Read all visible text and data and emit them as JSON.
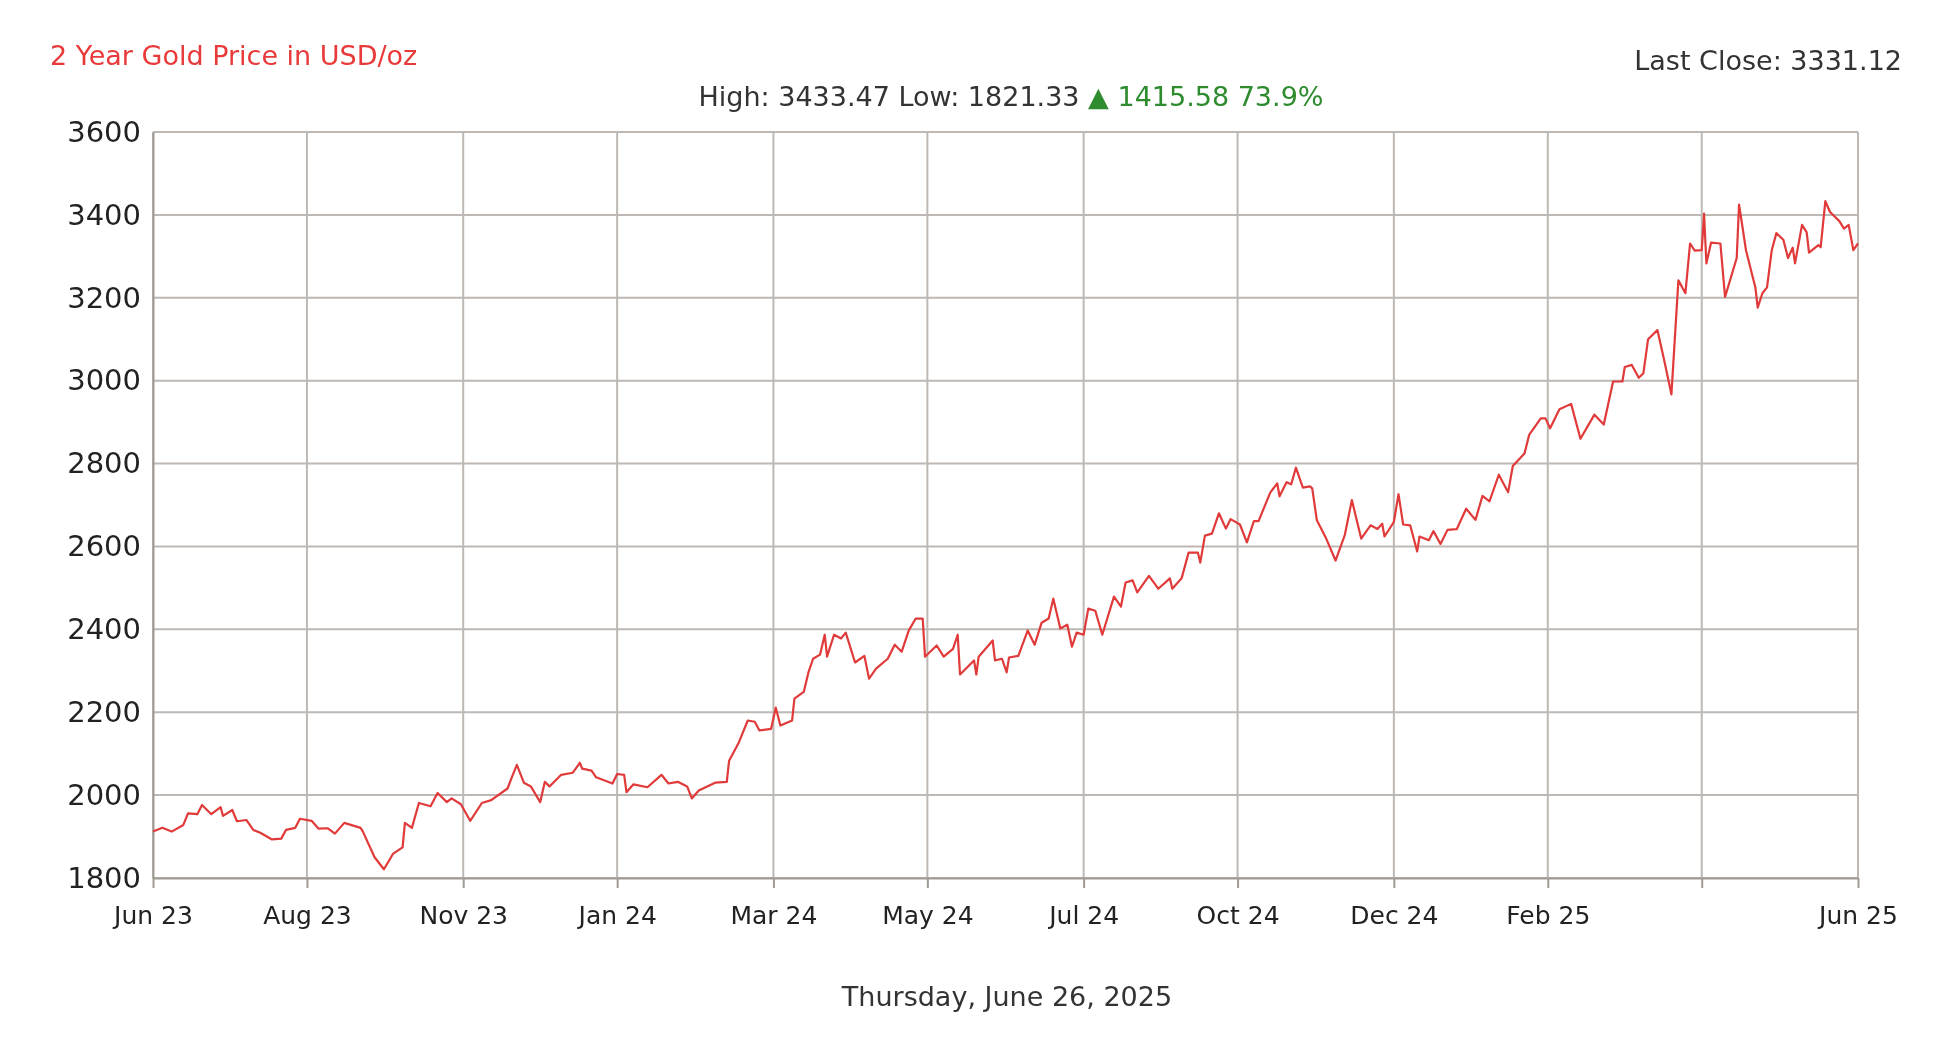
{
  "chart_data": {
    "type": "line",
    "title": "2 Year Gold Price in USD/oz",
    "subtitle": "High: 3433.47 Low: 1821.33",
    "annotations": [
      "▲ 1415.58 73.9%",
      "Last Close: 3331.12",
      "Thursday, June 26, 2025"
    ],
    "xlim": [
      "2023-06-26",
      "2025-06-26"
    ],
    "xticks": [
      {
        "value": "2023-06-26",
        "label": "Jun 23"
      },
      {
        "value": "2023-08-31",
        "label": "Aug 23"
      },
      {
        "value": "2023-11-06",
        "label": "Nov 23"
      },
      {
        "value": "2024-01-11",
        "label": "Jan 24"
      },
      {
        "value": "2024-03-18",
        "label": "Mar 24"
      },
      {
        "value": "2024-05-23",
        "label": "May 24"
      },
      {
        "value": "2024-07-29",
        "label": "Jul 24"
      },
      {
        "value": "2024-10-03",
        "label": "Oct 24"
      },
      {
        "value": "2024-12-09",
        "label": "Dec 24"
      },
      {
        "value": "2025-02-13",
        "label": "Feb 25"
      },
      {
        "value": "2025-04-20",
        "label": null
      },
      {
        "value": "2025-06-26",
        "label": "Jun 25"
      }
    ],
    "ylim": [
      1800,
      3600
    ],
    "yticks": [
      1800,
      2000,
      2200,
      2400,
      2600,
      2800,
      3000,
      3200,
      3400,
      3600
    ],
    "grid": true,
    "marker": "none",
    "line_style": "solid",
    "x": [
      "2023-06-26",
      "2023-06-30",
      "2023-07-04",
      "2023-07-09",
      "2023-07-11",
      "2023-07-15",
      "2023-07-17",
      "2023-07-21",
      "2023-07-25",
      "2023-07-26",
      "2023-07-30",
      "2023-08-01",
      "2023-08-05",
      "2023-08-08",
      "2023-08-11",
      "2023-08-16",
      "2023-08-20",
      "2023-08-22",
      "2023-08-26",
      "2023-08-28",
      "2023-09-02",
      "2023-09-05",
      "2023-09-09",
      "2023-09-12",
      "2023-09-16",
      "2023-09-23",
      "2023-09-24",
      "2023-09-29",
      "2023-10-03",
      "2023-10-07",
      "2023-10-11",
      "2023-10-12",
      "2023-10-15",
      "2023-10-18",
      "2023-10-23",
      "2023-10-26",
      "2023-10-30",
      "2023-11-01",
      "2023-11-05",
      "2023-11-09",
      "2023-11-14",
      "2023-11-18",
      "2023-11-25",
      "2023-11-27",
      "2023-11-29",
      "2023-12-02",
      "2023-12-05",
      "2023-12-09",
      "2023-12-11",
      "2023-12-13",
      "2023-12-18",
      "2023-12-23",
      "2023-12-26",
      "2023-12-27",
      "2023-12-31",
      "2024-01-02",
      "2024-01-09",
      "2024-01-11",
      "2024-01-14",
      "2024-01-15",
      "2024-01-18",
      "2024-01-24",
      "2024-01-30",
      "2024-02-02",
      "2024-02-06",
      "2024-02-10",
      "2024-02-12",
      "2024-02-15",
      "2024-02-22",
      "2024-02-27",
      "2024-02-28",
      "2024-03-03",
      "2024-03-07",
      "2024-03-10",
      "2024-03-12",
      "2024-03-17",
      "2024-03-19",
      "2024-03-21",
      "2024-03-26",
      "2024-03-27",
      "2024-03-31",
      "2024-04-02",
      "2024-04-04",
      "2024-04-07",
      "2024-04-09",
      "2024-04-10",
      "2024-04-13",
      "2024-04-16",
      "2024-04-18",
      "2024-04-22",
      "2024-04-26",
      "2024-04-28",
      "2024-05-01",
      "2024-05-06",
      "2024-05-09",
      "2024-05-12",
      "2024-05-15",
      "2024-05-18",
      "2024-05-21",
      "2024-05-22",
      "2024-05-27",
      "2024-05-30",
      "2024-06-03",
      "2024-06-05",
      "2024-06-06",
      "2024-06-12",
      "2024-06-13",
      "2024-06-14",
      "2024-06-20",
      "2024-06-21",
      "2024-06-24",
      "2024-06-26",
      "2024-06-27",
      "2024-07-01",
      "2024-07-05",
      "2024-07-08",
      "2024-07-11",
      "2024-07-14",
      "2024-07-16",
      "2024-07-19",
      "2024-07-22",
      "2024-07-24",
      "2024-07-26",
      "2024-07-29",
      "2024-07-31",
      "2024-08-03",
      "2024-08-06",
      "2024-08-11",
      "2024-08-14",
      "2024-08-16",
      "2024-08-19",
      "2024-08-21",
      "2024-08-26",
      "2024-08-30",
      "2024-09-04",
      "2024-09-05",
      "2024-09-09",
      "2024-09-12",
      "2024-09-16",
      "2024-09-17",
      "2024-09-19",
      "2024-09-22",
      "2024-09-25",
      "2024-09-28",
      "2024-09-30",
      "2024-10-04",
      "2024-10-07",
      "2024-10-10",
      "2024-10-12",
      "2024-10-17",
      "2024-10-20",
      "2024-10-21",
      "2024-10-24",
      "2024-10-26",
      "2024-10-28",
      "2024-10-31",
      "2024-11-03",
      "2024-11-04",
      "2024-11-06",
      "2024-11-10",
      "2024-11-14",
      "2024-11-18",
      "2024-11-21",
      "2024-11-25",
      "2024-11-29",
      "2024-12-02",
      "2024-12-04",
      "2024-12-05",
      "2024-12-09",
      "2024-12-11",
      "2024-12-13",
      "2024-12-16",
      "2024-12-19",
      "2024-12-20",
      "2024-12-24",
      "2024-12-26",
      "2024-12-29",
      "2025-01-01",
      "2025-01-05",
      "2025-01-09",
      "2025-01-13",
      "2025-01-16",
      "2025-01-19",
      "2025-01-23",
      "2025-01-27",
      "2025-01-29",
      "2025-02-03",
      "2025-02-05",
      "2025-02-10",
      "2025-02-12",
      "2025-02-14",
      "2025-02-18",
      "2025-02-23",
      "2025-02-27",
      "2025-03-05",
      "2025-03-09",
      "2025-03-13",
      "2025-03-17",
      "2025-03-18",
      "2025-03-21",
      "2025-03-24",
      "2025-03-26",
      "2025-03-28",
      "2025-04-01",
      "2025-04-04",
      "2025-04-07",
      "2025-04-10",
      "2025-04-13",
      "2025-04-15",
      "2025-04-17",
      "2025-04-20",
      "2025-04-21",
      "2025-04-22",
      "2025-04-24",
      "2025-04-28",
      "2025-04-30",
      "2025-05-05",
      "2025-05-06",
      "2025-05-09",
      "2025-05-13",
      "2025-05-14",
      "2025-05-16",
      "2025-05-18",
      "2025-05-20",
      "2025-05-22",
      "2025-05-25",
      "2025-05-27",
      "2025-05-29",
      "2025-05-30",
      "2025-06-02",
      "2025-06-04",
      "2025-06-05",
      "2025-06-09",
      "2025-06-10",
      "2025-06-12",
      "2025-06-14",
      "2025-06-18",
      "2025-06-20",
      "2025-06-22",
      "2025-06-24",
      "2025-06-26"
    ],
    "series": [
      {
        "color": "#e03a3a",
        "values": [
          1912,
          1921,
          1912,
          1928,
          1956,
          1954,
          1976,
          1954,
          1971,
          1950,
          1964,
          1937,
          1940,
          1916,
          1909,
          1893,
          1895,
          1916,
          1921,
          1943,
          1938,
          1919,
          1920,
          1907,
          1933,
          1921,
          1912,
          1850,
          1821,
          1859,
          1874,
          1933,
          1921,
          1981,
          1973,
          2005,
          1983,
          1992,
          1978,
          1938,
          1981,
          1988,
          2016,
          2045,
          2073,
          2030,
          2021,
          1983,
          2032,
          2021,
          2049,
          2054,
          2078,
          2064,
          2059,
          2043,
          2028,
          2051,
          2049,
          2007,
          2026,
          2019,
          2049,
          2028,
          2032,
          2021,
          1992,
          2011,
          2030,
          2032,
          2083,
          2125,
          2180,
          2177,
          2156,
          2160,
          2211,
          2168,
          2180,
          2233,
          2249,
          2296,
          2329,
          2339,
          2387,
          2334,
          2387,
          2378,
          2392,
          2320,
          2336,
          2281,
          2305,
          2329,
          2363,
          2346,
          2397,
          2426,
          2426,
          2334,
          2361,
          2334,
          2353,
          2387,
          2291,
          2325,
          2291,
          2334,
          2373,
          2325,
          2329,
          2296,
          2332,
          2336,
          2397,
          2363,
          2416,
          2426,
          2474,
          2402,
          2411,
          2358,
          2392,
          2387,
          2450,
          2445,
          2387,
          2479,
          2455,
          2513,
          2518,
          2489,
          2529,
          2498,
          2523,
          2498,
          2523,
          2585,
          2585,
          2561,
          2626,
          2631,
          2680,
          2643,
          2666,
          2653,
          2610,
          2661,
          2661,
          2730,
          2752,
          2721,
          2755,
          2750,
          2790,
          2742,
          2745,
          2740,
          2663,
          2619,
          2566,
          2628,
          2712,
          2619,
          2651,
          2642,
          2655,
          2624,
          2659,
          2726,
          2653,
          2651,
          2588,
          2624,
          2615,
          2637,
          2606,
          2640,
          2642,
          2691,
          2664,
          2722,
          2709,
          2773,
          2731,
          2794,
          2824,
          2869,
          2909,
          2909,
          2885,
          2931,
          2944,
          2860,
          2918,
          2894,
          2998,
          2998,
          3033,
          3038,
          3007,
          3018,
          3100,
          3122,
          3047,
          2967,
          3242,
          3211,
          3331,
          3314,
          3315,
          3403,
          3283,
          3333,
          3331,
          3202,
          3296,
          3425,
          3314,
          3225,
          3176,
          3211,
          3225,
          3314,
          3356,
          3340,
          3296,
          3321,
          3283,
          3376,
          3358,
          3309,
          3327,
          3322,
          3433,
          3407,
          3385,
          3367,
          3376,
          3315,
          3331
        ]
      }
    ]
  }
}
